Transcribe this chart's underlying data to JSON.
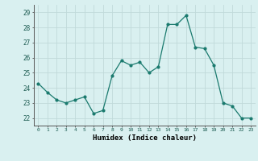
{
  "x": [
    0,
    1,
    2,
    3,
    4,
    5,
    6,
    7,
    8,
    9,
    10,
    11,
    12,
    13,
    14,
    15,
    16,
    17,
    18,
    19,
    20,
    21,
    22,
    23
  ],
  "y": [
    24.3,
    23.7,
    23.2,
    23.0,
    23.2,
    23.4,
    22.3,
    22.5,
    24.8,
    25.8,
    25.5,
    25.7,
    25.0,
    25.4,
    28.2,
    28.2,
    28.8,
    26.7,
    26.6,
    25.5,
    23.0,
    22.8,
    22.0,
    22.0
  ],
  "line_color": "#1a7a6e",
  "marker_color": "#1a7a6e",
  "bg_color": "#d9f0f0",
  "grid_color": "#c0dada",
  "xlabel": "Humidex (Indice chaleur)",
  "ylim": [
    21.5,
    29.5
  ],
  "xlim": [
    -0.5,
    23.5
  ],
  "yticks": [
    22,
    23,
    24,
    25,
    26,
    27,
    28,
    29
  ],
  "xticks": [
    0,
    1,
    2,
    3,
    4,
    5,
    6,
    7,
    8,
    9,
    10,
    11,
    12,
    13,
    14,
    15,
    16,
    17,
    18,
    19,
    20,
    21,
    22,
    23
  ]
}
